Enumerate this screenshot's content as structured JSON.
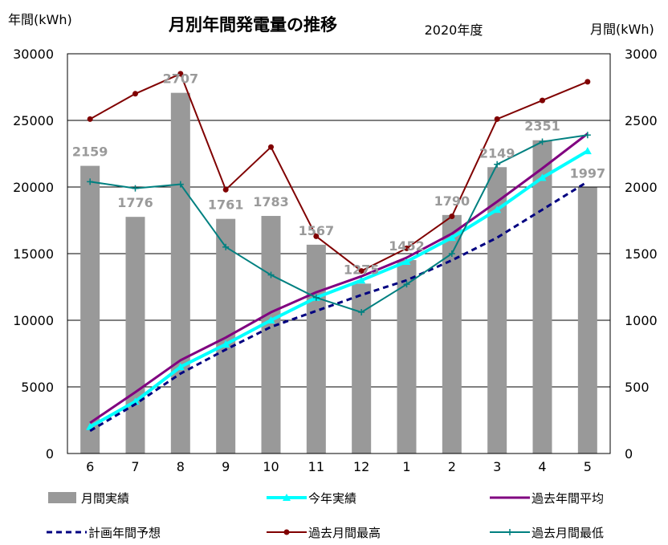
{
  "chart_data": {
    "type": "bar",
    "title": "月別年間発電量の推移",
    "subtitle": "2020年度",
    "ylabel_left": "年間(kWh)",
    "ylabel_right": "月間(kWh)",
    "categories": [
      "6",
      "7",
      "8",
      "9",
      "10",
      "11",
      "12",
      "1",
      "2",
      "3",
      "4",
      "5"
    ],
    "ylim_left": [
      0,
      30000
    ],
    "ylim_right": [
      0,
      3000
    ],
    "yticks_left": [
      "0",
      "5000",
      "10000",
      "15000",
      "20000",
      "25000",
      "30000"
    ],
    "yticks_right": [
      "0",
      "500",
      "1000",
      "1500",
      "2000",
      "2500",
      "3000"
    ],
    "grid": true,
    "legend_position": "bottom",
    "series": [
      {
        "name": "月間実績",
        "kind": "bar",
        "axis": "right",
        "color": "#999999",
        "values": [
          2159,
          1776,
          2707,
          1761,
          1783,
          1567,
          1275,
          1452,
          1790,
          2149,
          2351,
          1997
        ],
        "labels": [
          "2159",
          "1776",
          "2707",
          "1761",
          "1783",
          "1567",
          "1275",
          "1452",
          "1790",
          "2149",
          "2351",
          "1997"
        ]
      },
      {
        "name": "今年実績",
        "kind": "line",
        "axis": "left",
        "color": "#00ffff",
        "values": [
          2000,
          3900,
          6500,
          8200,
          10000,
          11700,
          13000,
          14400,
          16200,
          18300,
          20700,
          22700
        ]
      },
      {
        "name": "過去年間平均",
        "kind": "line",
        "axis": "left",
        "color": "#800080",
        "values": [
          2300,
          4600,
          7000,
          8700,
          10600,
          12100,
          13300,
          14700,
          16500,
          18900,
          21400,
          24000
        ]
      },
      {
        "name": "計画年間予想",
        "kind": "line",
        "axis": "left",
        "color": "#000080",
        "values": [
          1700,
          3700,
          6000,
          7800,
          9500,
          10700,
          11900,
          13000,
          14500,
          16200,
          18300,
          20400
        ]
      },
      {
        "name": "過去月間最高",
        "kind": "line",
        "axis": "right",
        "color": "#800000",
        "values": [
          2510,
          2700,
          2850,
          1980,
          2300,
          1630,
          1370,
          1540,
          1780,
          2510,
          2650,
          2790
        ]
      },
      {
        "name": "過去月間最低",
        "kind": "line",
        "axis": "right",
        "color": "#008080",
        "values": [
          2040,
          1990,
          2020,
          1550,
          1340,
          1170,
          1060,
          1270,
          1500,
          2170,
          2340,
          2390
        ]
      }
    ]
  }
}
